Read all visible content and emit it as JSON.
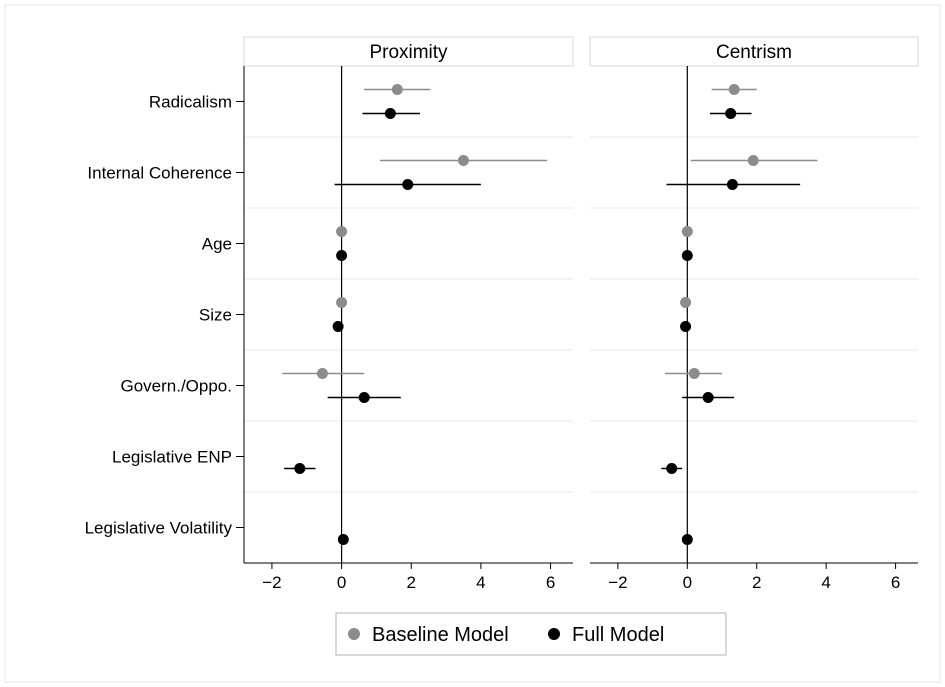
{
  "chart_data": {
    "type": "scatter",
    "variant": "coefficient-plot-with-confidence-intervals",
    "panels": [
      "Proximity",
      "Centrism"
    ],
    "categories": [
      "Radicalism",
      "Internal Coherence",
      "Age",
      "Size",
      "Govern./Oppo.",
      "Legislative ENP",
      "Legislative Volatility"
    ],
    "x_ticks": [
      -2,
      0,
      2,
      4,
      6
    ],
    "x_tick_labels": [
      "−2",
      "0",
      "2",
      "4",
      "6"
    ],
    "xlim": [
      -2.4,
      6.3
    ],
    "reference_line": 0,
    "grid": "horizontal, light",
    "legend_position": "bottom",
    "series": [
      {
        "name": "Baseline Model",
        "color": "#8c8c8c",
        "panels": {
          "Proximity": [
            {
              "category": "Radicalism",
              "estimate": 1.6,
              "lo": 0.65,
              "hi": 2.55
            },
            {
              "category": "Internal Coherence",
              "estimate": 3.5,
              "lo": 1.1,
              "hi": 5.9
            },
            {
              "category": "Age",
              "estimate": 0.0,
              "lo": 0.0,
              "hi": 0.0
            },
            {
              "category": "Size",
              "estimate": 0.0,
              "lo": 0.0,
              "hi": 0.0
            },
            {
              "category": "Govern./Oppo.",
              "estimate": -0.55,
              "lo": -1.7,
              "hi": 0.65
            }
          ],
          "Centrism": [
            {
              "category": "Radicalism",
              "estimate": 1.35,
              "lo": 0.7,
              "hi": 2.0
            },
            {
              "category": "Internal Coherence",
              "estimate": 1.9,
              "lo": 0.1,
              "hi": 3.75
            },
            {
              "category": "Age",
              "estimate": 0.0,
              "lo": 0.0,
              "hi": 0.0
            },
            {
              "category": "Size",
              "estimate": -0.05,
              "lo": -0.05,
              "hi": -0.05
            },
            {
              "category": "Govern./Oppo.",
              "estimate": 0.2,
              "lo": -0.65,
              "hi": 1.0
            }
          ]
        }
      },
      {
        "name": "Full Model",
        "color": "#000000",
        "panels": {
          "Proximity": [
            {
              "category": "Radicalism",
              "estimate": 1.4,
              "lo": 0.6,
              "hi": 2.25
            },
            {
              "category": "Internal Coherence",
              "estimate": 1.9,
              "lo": -0.2,
              "hi": 4.0
            },
            {
              "category": "Age",
              "estimate": 0.0,
              "lo": 0.0,
              "hi": 0.0
            },
            {
              "category": "Size",
              "estimate": -0.1,
              "lo": -0.1,
              "hi": -0.1
            },
            {
              "category": "Govern./Oppo.",
              "estimate": 0.65,
              "lo": -0.4,
              "hi": 1.7
            },
            {
              "category": "Legislative ENP",
              "estimate": -1.2,
              "lo": -1.65,
              "hi": -0.75
            },
            {
              "category": "Legislative Volatility",
              "estimate": 0.05,
              "lo": 0.05,
              "hi": 0.05
            }
          ],
          "Centrism": [
            {
              "category": "Radicalism",
              "estimate": 1.25,
              "lo": 0.65,
              "hi": 1.85
            },
            {
              "category": "Internal Coherence",
              "estimate": 1.3,
              "lo": -0.6,
              "hi": 3.25
            },
            {
              "category": "Age",
              "estimate": 0.0,
              "lo": 0.0,
              "hi": 0.0
            },
            {
              "category": "Size",
              "estimate": -0.05,
              "lo": -0.05,
              "hi": -0.05
            },
            {
              "category": "Govern./Oppo.",
              "estimate": 0.6,
              "lo": -0.15,
              "hi": 1.35
            },
            {
              "category": "Legislative ENP",
              "estimate": -0.45,
              "lo": -0.75,
              "hi": -0.15
            },
            {
              "category": "Legislative Volatility",
              "estimate": 0.0,
              "lo": 0.0,
              "hi": 0.0
            }
          ]
        }
      }
    ]
  }
}
